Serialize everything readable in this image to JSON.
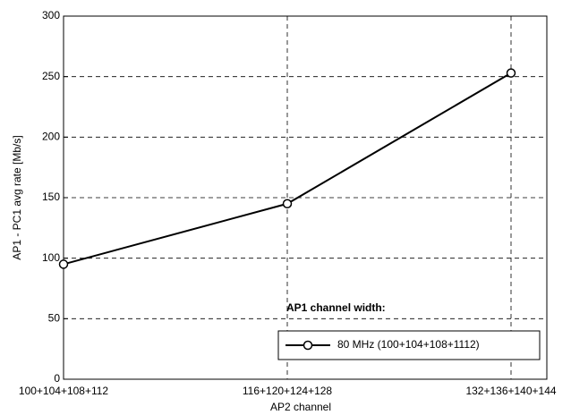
{
  "chart_data": {
    "type": "line",
    "xlabel": "AP2 channel",
    "ylabel": "AP1 - PC1 avg rate [Mb/s]",
    "categories": [
      "100+104+108+112",
      "116+120+124+128",
      "132+136+140+144"
    ],
    "series": [
      {
        "name": "80 MHz (100+104+108+1112)",
        "color": "#000000",
        "values": [
          95,
          145,
          253
        ]
      }
    ],
    "ylim": [
      0,
      300
    ],
    "yticks": [
      0,
      50,
      100,
      150,
      200,
      250,
      300
    ],
    "grid": true,
    "legend_title": "AP1 channel width:",
    "legend": "lower right"
  }
}
